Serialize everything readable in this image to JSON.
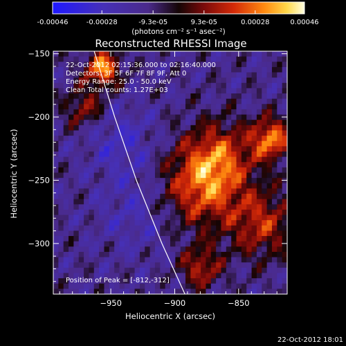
{
  "chart_data": {
    "type": "heatmap",
    "title": "Reconstructed RHESSI Image",
    "xlabel": "Heliocentric X (arcsec)",
    "ylabel": "Heliocentric Y (arcsec)",
    "xlim": [
      -995,
      -812
    ],
    "ylim": [
      -340,
      -148
    ],
    "x_ticks": [
      -950,
      -900,
      -850
    ],
    "y_ticks": [
      -150,
      -200,
      -250,
      -300
    ],
    "colorbar": {
      "range": [
        -0.00046,
        0.00046
      ],
      "ticks": [
        -0.00046,
        -0.00028,
        -9.3e-05,
        9.3e-05,
        0.00028,
        0.00046
      ],
      "tick_labels": [
        "-0.00046",
        "-0.00028",
        "-9.3e-05",
        "9.3e-05",
        "0.00028",
        "0.00046"
      ],
      "unit_label": "(photons cm⁻² s⁻¹ asec⁻²)"
    },
    "info_lines": [
      "22-Oct-2012 02:15:36.000 to 02:16:40.000",
      "Detectors: 3F 5F 6F 7F 8F 9F, Att 0",
      "Energy Range: 25.0 - 50.0 keV",
      "Clean     Total counts: 1.27E+03"
    ],
    "peak_label": "Position of Peak = [-812,-312]",
    "limb_curve": [
      [
        -963,
        -148
      ],
      [
        -947,
        -200
      ],
      [
        -930,
        -250
      ],
      [
        -910,
        -300
      ],
      [
        -892,
        -340
      ]
    ],
    "timestamp": "22-Oct-2012 18:01"
  }
}
